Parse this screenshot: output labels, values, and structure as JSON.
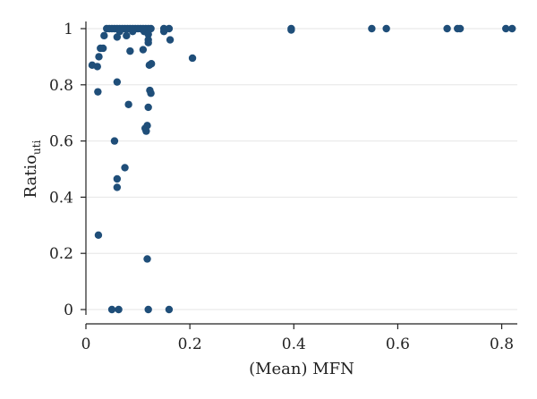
{
  "chart_data": {
    "type": "scatter",
    "title": "",
    "xlabel": "(Mean) MFN",
    "ylabel": {
      "main": "Ratio",
      "subscript": "uti"
    },
    "xlim": [
      0,
      0.83
    ],
    "ylim": [
      0,
      1
    ],
    "xticks": [
      0,
      0.2,
      0.4,
      0.6,
      0.8
    ],
    "xtick_labels": [
      "0",
      "0.2",
      "0.4",
      "0.6",
      "0.8"
    ],
    "yticks": [
      0,
      0.2,
      0.4,
      0.6,
      0.8,
      1
    ],
    "ytick_labels": [
      "0",
      "0.2",
      "0.4",
      "0.6",
      "0.8",
      "1"
    ],
    "grid": {
      "horizontal": true,
      "vertical": false
    },
    "legend": "none",
    "marker_color": "#1f4e79",
    "series": [
      {
        "points": [
          [
            0.012,
            0.87
          ],
          [
            0.022,
            0.865
          ],
          [
            0.025,
            0.9
          ],
          [
            0.028,
            0.93
          ],
          [
            0.033,
            0.93
          ],
          [
            0.023,
            0.775
          ],
          [
            0.024,
            0.265
          ],
          [
            0.035,
            0.975
          ],
          [
            0.04,
            1.0
          ],
          [
            0.045,
            1.0
          ],
          [
            0.05,
            1.0
          ],
          [
            0.055,
            1.0
          ],
          [
            0.06,
            1.0
          ],
          [
            0.065,
            1.0
          ],
          [
            0.07,
            1.0
          ],
          [
            0.075,
            1.0
          ],
          [
            0.08,
            1.0
          ],
          [
            0.085,
            1.0
          ],
          [
            0.09,
            1.0
          ],
          [
            0.095,
            1.0
          ],
          [
            0.1,
            1.0
          ],
          [
            0.105,
            1.0
          ],
          [
            0.11,
            1.0
          ],
          [
            0.115,
            1.0
          ],
          [
            0.12,
            1.0
          ],
          [
            0.125,
            1.0
          ],
          [
            0.065,
            0.99
          ],
          [
            0.06,
            0.97
          ],
          [
            0.078,
            0.975
          ],
          [
            0.09,
            0.99
          ],
          [
            0.112,
            0.99
          ],
          [
            0.12,
            0.98
          ],
          [
            0.12,
            0.96
          ],
          [
            0.12,
            0.95
          ],
          [
            0.085,
            0.92
          ],
          [
            0.11,
            0.925
          ],
          [
            0.06,
            0.81
          ],
          [
            0.122,
            0.87
          ],
          [
            0.126,
            0.875
          ],
          [
            0.123,
            0.78
          ],
          [
            0.125,
            0.77
          ],
          [
            0.082,
            0.73
          ],
          [
            0.12,
            0.72
          ],
          [
            0.118,
            0.655
          ],
          [
            0.114,
            0.645
          ],
          [
            0.116,
            0.635
          ],
          [
            0.055,
            0.6
          ],
          [
            0.075,
            0.505
          ],
          [
            0.06,
            0.465
          ],
          [
            0.06,
            0.435
          ],
          [
            0.118,
            0.18
          ],
          [
            0.05,
            0.0
          ],
          [
            0.063,
            0.0
          ],
          [
            0.12,
            0.0
          ],
          [
            0.16,
            0.0
          ],
          [
            0.15,
            1.0
          ],
          [
            0.15,
            0.99
          ],
          [
            0.16,
            1.0
          ],
          [
            0.162,
            0.96
          ],
          [
            0.205,
            0.895
          ],
          [
            0.395,
            1.0
          ],
          [
            0.395,
            0.995
          ],
          [
            0.55,
            1.0
          ],
          [
            0.578,
            1.0
          ],
          [
            0.695,
            1.0
          ],
          [
            0.715,
            1.0
          ],
          [
            0.72,
            1.0
          ],
          [
            0.808,
            1.0
          ],
          [
            0.82,
            1.0
          ]
        ]
      }
    ]
  }
}
